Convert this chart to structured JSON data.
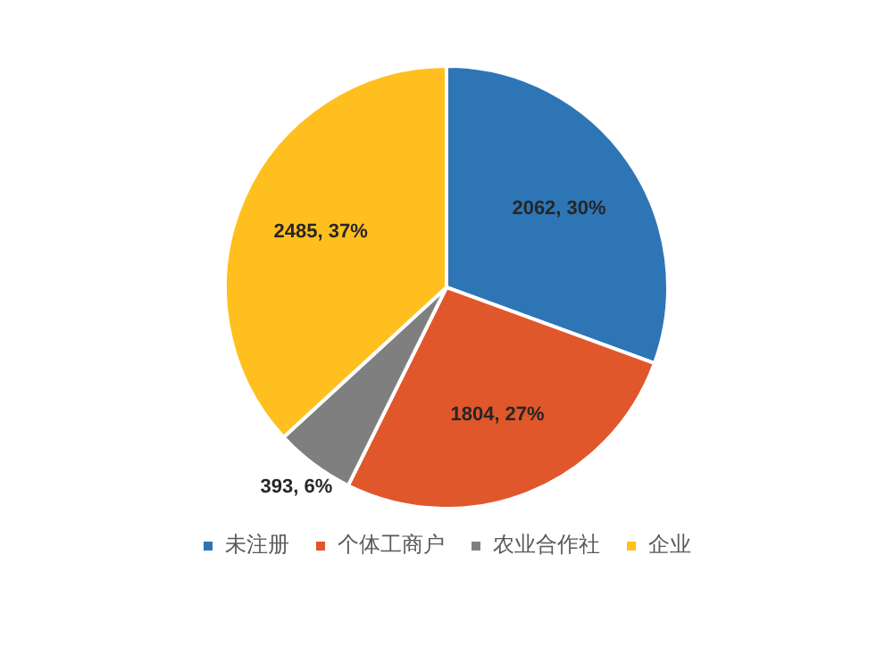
{
  "chart_data": {
    "type": "pie",
    "categories": [
      "未注册",
      "个体工商户",
      "农业合作社",
      "企业"
    ],
    "values": [
      2062,
      1804,
      393,
      2485
    ],
    "colors": [
      "#2e75b6",
      "#e0572c",
      "#7f7f7f",
      "#ffbf1f"
    ],
    "value_labels": [
      "2062, 30%",
      "1804, 27%",
      "393, 6%",
      "2485, 37%"
    ],
    "legend": "bottom"
  }
}
